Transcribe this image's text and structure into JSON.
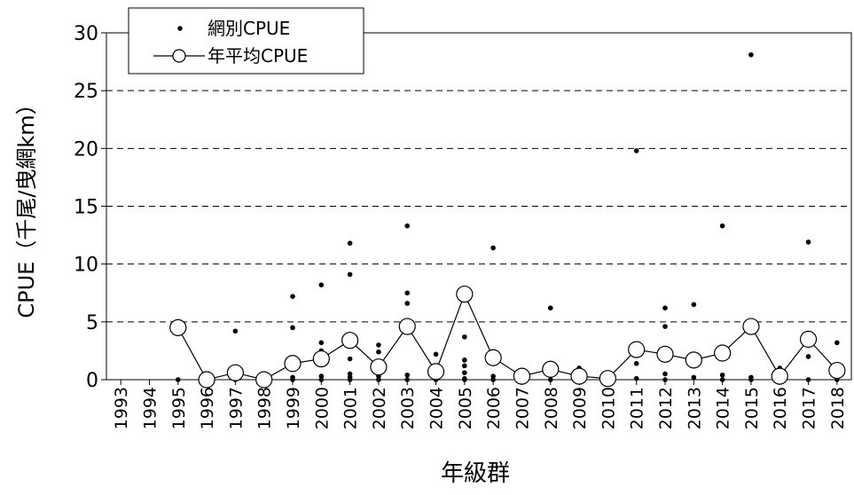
{
  "chart_data": {
    "type": "scatter",
    "xlabel": "年級群",
    "ylabel": "CPUE（千尾/曳網km）",
    "ylim": [
      0,
      30
    ],
    "yticks": [
      "0",
      "5",
      "10",
      "15",
      "20",
      "25",
      "30"
    ],
    "categories": [
      "1993",
      "1994",
      "1995",
      "1996",
      "1997",
      "1998",
      "1999",
      "2000",
      "2001",
      "2002",
      "2003",
      "2004",
      "2005",
      "2006",
      "2007",
      "2008",
      "2009",
      "2010",
      "2011",
      "2012",
      "2013",
      "2014",
      "2015",
      "2016",
      "2017",
      "2018"
    ],
    "grid": "horizontal dashed",
    "legend_position": "top-left",
    "legend": {
      "scatter": "網別CPUE",
      "line": "年平均CPUE"
    },
    "series": [
      {
        "name": "網別CPUE",
        "kind": "scatter",
        "points": [
          {
            "x": "1995",
            "y": 4.5
          },
          {
            "x": "1995",
            "y": 0
          },
          {
            "x": "1996",
            "y": 0
          },
          {
            "x": "1997",
            "y": 4.2
          },
          {
            "x": "1997",
            "y": 0.8
          },
          {
            "x": "1997",
            "y": 0
          },
          {
            "x": "1998",
            "y": 0
          },
          {
            "x": "1999",
            "y": 7.2
          },
          {
            "x": "1999",
            "y": 4.5
          },
          {
            "x": "1999",
            "y": 0.2
          },
          {
            "x": "1999",
            "y": 0
          },
          {
            "x": "2000",
            "y": 8.2
          },
          {
            "x": "2000",
            "y": 3.2
          },
          {
            "x": "2000",
            "y": 2.5
          },
          {
            "x": "2000",
            "y": 0.3
          },
          {
            "x": "2000",
            "y": 0
          },
          {
            "x": "2001",
            "y": 11.8
          },
          {
            "x": "2001",
            "y": 9.1
          },
          {
            "x": "2001",
            "y": 1.8
          },
          {
            "x": "2001",
            "y": 0.5
          },
          {
            "x": "2001",
            "y": 0.2
          },
          {
            "x": "2001",
            "y": 0
          },
          {
            "x": "2002",
            "y": 3.0
          },
          {
            "x": "2002",
            "y": 2.4
          },
          {
            "x": "2002",
            "y": 0.3
          },
          {
            "x": "2002",
            "y": 0
          },
          {
            "x": "2003",
            "y": 13.3
          },
          {
            "x": "2003",
            "y": 7.5
          },
          {
            "x": "2003",
            "y": 6.6
          },
          {
            "x": "2003",
            "y": 0.4
          },
          {
            "x": "2003",
            "y": 0
          },
          {
            "x": "2004",
            "y": 2.2
          },
          {
            "x": "2004",
            "y": 0.9
          },
          {
            "x": "2004",
            "y": 0
          },
          {
            "x": "2005",
            "y": 3.7
          },
          {
            "x": "2005",
            "y": 1.7
          },
          {
            "x": "2005",
            "y": 1.2
          },
          {
            "x": "2005",
            "y": 0.6
          },
          {
            "x": "2005",
            "y": 0.1
          },
          {
            "x": "2005",
            "y": 0
          },
          {
            "x": "2006",
            "y": 11.4
          },
          {
            "x": "2006",
            "y": 2.3
          },
          {
            "x": "2006",
            "y": 0.3
          },
          {
            "x": "2006",
            "y": 0
          },
          {
            "x": "2007",
            "y": 0.6
          },
          {
            "x": "2007",
            "y": 0.3
          },
          {
            "x": "2007",
            "y": 0
          },
          {
            "x": "2008",
            "y": 6.2
          },
          {
            "x": "2008",
            "y": 0.5
          },
          {
            "x": "2008",
            "y": 0
          },
          {
            "x": "2009",
            "y": 1.0
          },
          {
            "x": "2009",
            "y": 0.4
          },
          {
            "x": "2009",
            "y": 0
          },
          {
            "x": "2010",
            "y": 0.5
          },
          {
            "x": "2010",
            "y": 0.2
          },
          {
            "x": "2010",
            "y": 0
          },
          {
            "x": "2011",
            "y": 19.8
          },
          {
            "x": "2011",
            "y": 1.4
          },
          {
            "x": "2011",
            "y": 0.1
          },
          {
            "x": "2012",
            "y": 6.2
          },
          {
            "x": "2012",
            "y": 4.6
          },
          {
            "x": "2012",
            "y": 1.8
          },
          {
            "x": "2012",
            "y": 0.5
          },
          {
            "x": "2012",
            "y": 0
          },
          {
            "x": "2013",
            "y": 6.5
          },
          {
            "x": "2013",
            "y": 2.0
          },
          {
            "x": "2013",
            "y": 1.5
          },
          {
            "x": "2013",
            "y": 0.2
          },
          {
            "x": "2014",
            "y": 13.3
          },
          {
            "x": "2014",
            "y": 0.4
          },
          {
            "x": "2014",
            "y": 0
          },
          {
            "x": "2015",
            "y": 28.1
          },
          {
            "x": "2015",
            "y": 0.2
          },
          {
            "x": "2015",
            "y": 0
          },
          {
            "x": "2016",
            "y": 1.0
          },
          {
            "x": "2016",
            "y": 0.5
          },
          {
            "x": "2016",
            "y": 0
          },
          {
            "x": "2017",
            "y": 11.9
          },
          {
            "x": "2017",
            "y": 2.0
          },
          {
            "x": "2017",
            "y": 0
          },
          {
            "x": "2018",
            "y": 3.2
          },
          {
            "x": "2018",
            "y": 0
          }
        ]
      },
      {
        "name": "年平均CPUE",
        "kind": "line",
        "points": [
          {
            "x": "1995",
            "y": 4.5
          },
          {
            "x": "1996",
            "y": 0
          },
          {
            "x": "1997",
            "y": 0.6
          },
          {
            "x": "1998",
            "y": 0
          },
          {
            "x": "1999",
            "y": 1.4
          },
          {
            "x": "2000",
            "y": 1.8
          },
          {
            "x": "2001",
            "y": 3.4
          },
          {
            "x": "2002",
            "y": 1.1
          },
          {
            "x": "2003",
            "y": 4.6
          },
          {
            "x": "2004",
            "y": 0.7
          },
          {
            "x": "2005",
            "y": 7.4
          },
          {
            "x": "2006",
            "y": 1.9
          },
          {
            "x": "2007",
            "y": 0.3
          },
          {
            "x": "2008",
            "y": 0.9
          },
          {
            "x": "2009",
            "y": 0.3
          },
          {
            "x": "2010",
            "y": 0.1
          },
          {
            "x": "2011",
            "y": 2.6
          },
          {
            "x": "2012",
            "y": 2.2
          },
          {
            "x": "2013",
            "y": 1.7
          },
          {
            "x": "2014",
            "y": 2.3
          },
          {
            "x": "2015",
            "y": 4.6
          },
          {
            "x": "2016",
            "y": 0.3
          },
          {
            "x": "2017",
            "y": 3.5
          },
          {
            "x": "2018",
            "y": 0.8
          }
        ]
      }
    ]
  }
}
